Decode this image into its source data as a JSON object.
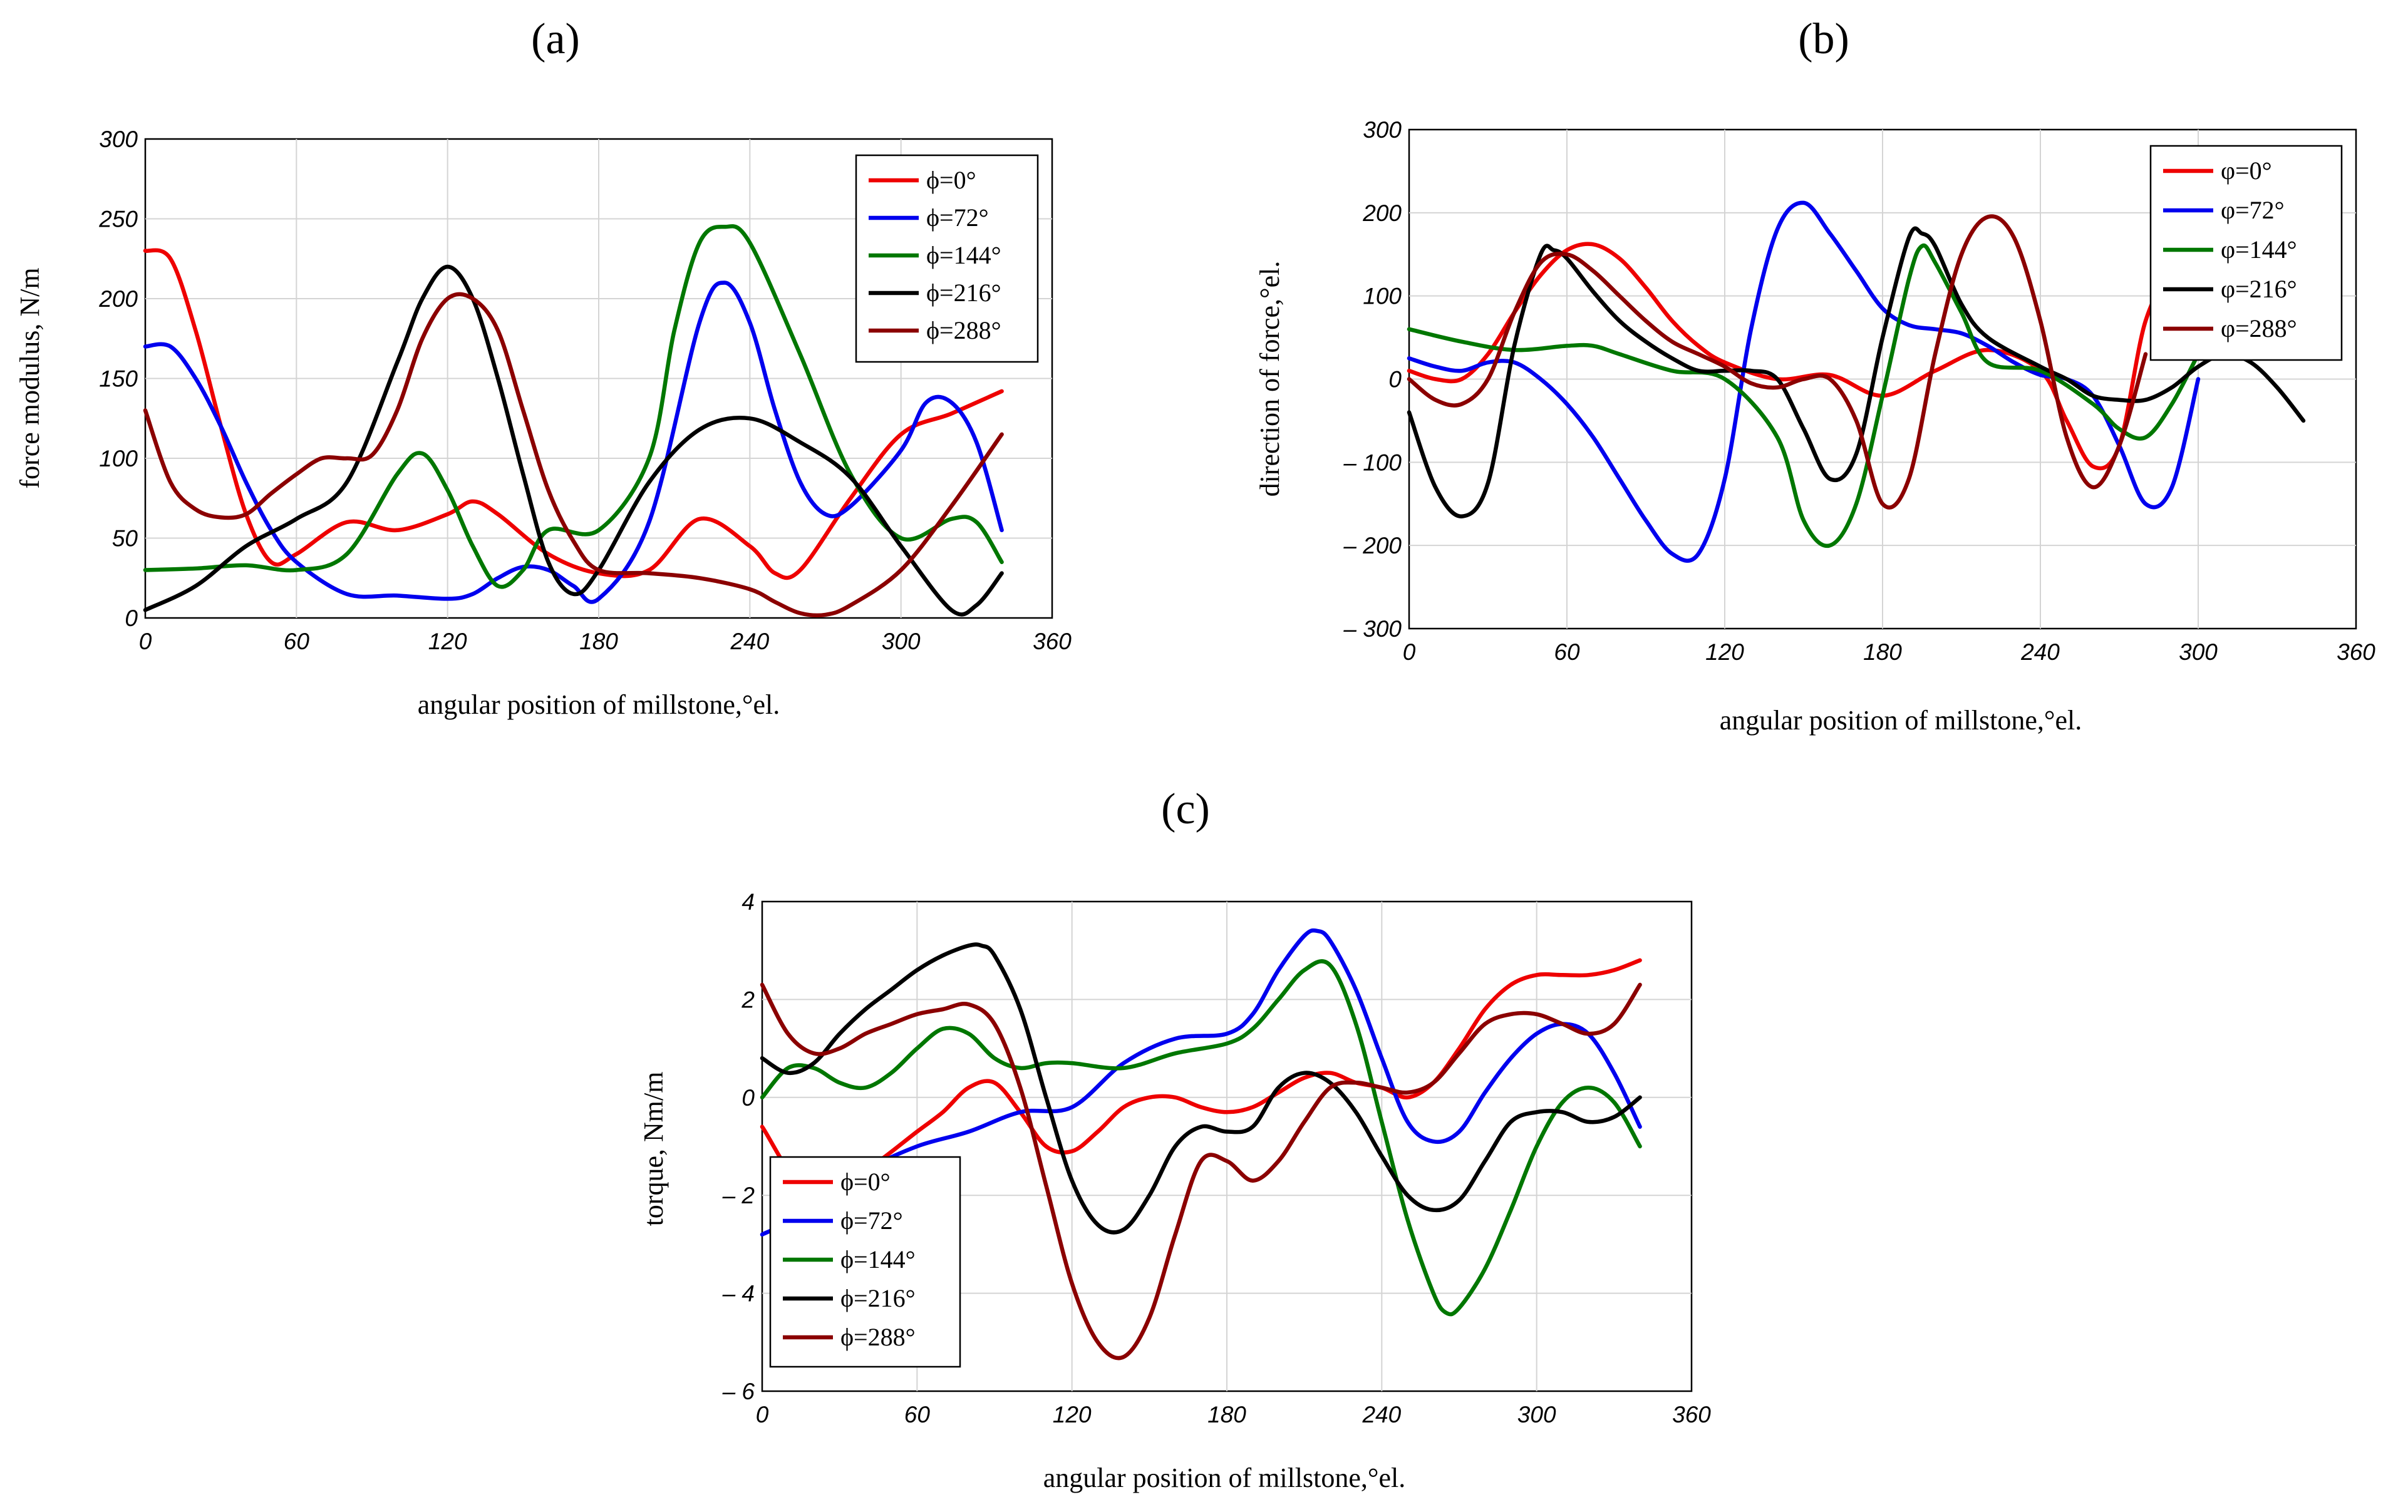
{
  "panels": [
    {
      "id": "a",
      "label": "(a)",
      "xlabel": "angular position of millstone,°el.",
      "ylabel": "force modulus, N/m",
      "xlim": [
        0,
        360
      ],
      "ylim": [
        0,
        300
      ],
      "xticks": [
        "0",
        "60",
        "120",
        "180",
        "240",
        "300",
        "360"
      ],
      "yticks": [
        "0",
        "50",
        "100",
        "150",
        "200",
        "250",
        "300"
      ],
      "legend": [
        "ϕ=0°",
        "ϕ=72°",
        "ϕ=144°",
        "ϕ=216°",
        "ϕ=288°"
      ]
    },
    {
      "id": "b",
      "label": "(b)",
      "xlabel": "angular position of millstone,°el.",
      "ylabel": "direction of force,°el.",
      "xlim": [
        0,
        360
      ],
      "ylim": [
        -300,
        300
      ],
      "xticks": [
        "0",
        "60",
        "120",
        "180",
        "240",
        "300",
        "360"
      ],
      "yticks": [
        "300",
        "200",
        "100",
        "0",
        "– 100",
        "– 200",
        "– 300"
      ],
      "legend": [
        "φ=0°",
        "φ=72°",
        "φ=144°",
        "φ=216°",
        "φ=288°"
      ]
    },
    {
      "id": "c",
      "label": "(c)",
      "xlabel": "angular position of millstone,°el.",
      "ylabel": "torque, Nm/m",
      "xlim": [
        0,
        360
      ],
      "ylim": [
        -6,
        4
      ],
      "xticks": [
        "0",
        "60",
        "120",
        "180",
        "240",
        "300",
        "360"
      ],
      "yticks": [
        "4",
        "2",
        "0",
        "– 2",
        "– 4",
        "– 6"
      ],
      "legend": [
        "ϕ=0°",
        "ϕ=72°",
        "ϕ=144°",
        "ϕ=216°",
        "ϕ=288°"
      ]
    }
  ],
  "colors": {
    "phi0": "#ee0000",
    "phi72": "#0000ee",
    "phi144": "#007700",
    "phi216": "#000000",
    "phi288": "#8b0000"
  },
  "chart_data": [
    {
      "type": "line",
      "panel": "a",
      "xlabel": "angular position of millstone,°el.",
      "ylabel": "force modulus, N/m",
      "xlim": [
        0,
        360
      ],
      "ylim": [
        0,
        300
      ],
      "grid": true,
      "legend_position": "top-right",
      "series": [
        {
          "name": "ϕ=0°",
          "color": "#ee0000",
          "x": [
            0,
            10,
            20,
            30,
            40,
            50,
            60,
            80,
            100,
            120,
            130,
            140,
            160,
            180,
            200,
            220,
            240,
            250,
            260,
            280,
            300,
            320,
            340
          ],
          "y": [
            230,
            225,
            180,
            120,
            65,
            35,
            40,
            60,
            55,
            65,
            73,
            65,
            40,
            28,
            30,
            62,
            45,
            28,
            30,
            75,
            115,
            128,
            142
          ]
        },
        {
          "name": "ϕ=72°",
          "color": "#0000ee",
          "x": [
            0,
            10,
            20,
            30,
            40,
            50,
            60,
            80,
            100,
            120,
            130,
            140,
            150,
            160,
            170,
            180,
            200,
            220,
            230,
            240,
            250,
            260,
            270,
            280,
            300,
            310,
            320,
            330,
            340
          ],
          "y": [
            170,
            170,
            150,
            120,
            85,
            55,
            35,
            15,
            14,
            12,
            15,
            25,
            32,
            30,
            20,
            12,
            60,
            185,
            210,
            185,
            130,
            85,
            65,
            70,
            105,
            135,
            135,
            110,
            55
          ]
        },
        {
          "name": "ϕ=144°",
          "color": "#007700",
          "x": [
            0,
            20,
            40,
            60,
            80,
            100,
            110,
            120,
            130,
            140,
            150,
            160,
            180,
            200,
            210,
            220,
            230,
            240,
            260,
            280,
            300,
            320,
            330,
            340
          ],
          "y": [
            30,
            31,
            33,
            30,
            40,
            90,
            103,
            80,
            45,
            20,
            30,
            55,
            55,
            100,
            180,
            235,
            245,
            235,
            165,
            90,
            50,
            62,
            60,
            35
          ]
        },
        {
          "name": "ϕ=216°",
          "color": "#000000",
          "x": [
            0,
            20,
            40,
            60,
            80,
            100,
            110,
            120,
            130,
            140,
            150,
            160,
            170,
            180,
            200,
            220,
            240,
            260,
            280,
            300,
            320,
            330,
            340
          ],
          "y": [
            5,
            20,
            45,
            62,
            85,
            160,
            200,
            220,
            200,
            150,
            90,
            35,
            15,
            30,
            85,
            118,
            125,
            110,
            88,
            45,
            5,
            8,
            28
          ]
        },
        {
          "name": "ϕ=288°",
          "color": "#8b0000",
          "x": [
            0,
            10,
            20,
            30,
            40,
            50,
            60,
            70,
            80,
            90,
            100,
            110,
            120,
            130,
            140,
            150,
            160,
            170,
            180,
            200,
            220,
            240,
            250,
            260,
            270,
            280,
            300,
            320,
            340
          ],
          "y": [
            130,
            85,
            68,
            63,
            65,
            78,
            90,
            100,
            100,
            102,
            130,
            175,
            200,
            200,
            180,
            130,
            80,
            48,
            30,
            28,
            25,
            18,
            10,
            3,
            2,
            8,
            30,
            70,
            115
          ]
        }
      ]
    },
    {
      "type": "line",
      "panel": "b",
      "xlabel": "angular position of millstone,°el.",
      "ylabel": "direction of force,°el.",
      "xlim": [
        0,
        360
      ],
      "ylim": [
        -300,
        300
      ],
      "grid": true,
      "legend_position": "top-right",
      "series": [
        {
          "name": "φ=0°",
          "color": "#ee0000",
          "x": [
            0,
            10,
            20,
            30,
            40,
            50,
            60,
            70,
            80,
            90,
            100,
            110,
            120,
            140,
            160,
            180,
            200,
            220,
            240,
            250,
            260,
            270,
            280,
            290,
            300,
            310,
            320
          ],
          "y": [
            10,
            0,
            0,
            30,
            80,
            125,
            155,
            162,
            145,
            110,
            70,
            40,
            20,
            0,
            5,
            -20,
            10,
            35,
            10,
            -50,
            -105,
            -80,
            70,
            115,
            60,
            30,
            50
          ]
        },
        {
          "name": "φ=72°",
          "color": "#0000ee",
          "x": [
            0,
            10,
            20,
            30,
            40,
            50,
            60,
            70,
            80,
            90,
            100,
            110,
            120,
            130,
            140,
            150,
            160,
            170,
            180,
            190,
            200,
            210,
            220,
            230,
            240,
            250,
            260,
            270,
            280,
            290,
            300
          ],
          "y": [
            25,
            15,
            10,
            20,
            20,
            0,
            -30,
            -70,
            -120,
            -170,
            -210,
            -210,
            -120,
            60,
            180,
            212,
            175,
            130,
            85,
            65,
            60,
            55,
            40,
            20,
            5,
            0,
            -20,
            -80,
            -150,
            -130,
            0
          ]
        },
        {
          "name": "φ=144°",
          "color": "#007700",
          "x": [
            0,
            20,
            40,
            60,
            70,
            80,
            100,
            120,
            140,
            150,
            160,
            170,
            180,
            190,
            195,
            200,
            210,
            220,
            240,
            260,
            270,
            280,
            290,
            300
          ],
          "y": [
            60,
            45,
            35,
            40,
            40,
            30,
            10,
            0,
            -70,
            -170,
            -200,
            -150,
            -20,
            120,
            160,
            140,
            80,
            20,
            10,
            -30,
            -60,
            -70,
            -30,
            30
          ]
        },
        {
          "name": "φ=216°",
          "color": "#000000",
          "x": [
            0,
            10,
            20,
            30,
            40,
            50,
            55,
            60,
            70,
            80,
            90,
            100,
            110,
            120,
            130,
            140,
            150,
            160,
            170,
            180,
            190,
            195,
            200,
            210,
            220,
            240,
            250,
            260,
            270,
            280,
            290,
            300,
            310,
            320,
            330,
            340
          ],
          "y": [
            -40,
            -130,
            -165,
            -125,
            40,
            150,
            155,
            145,
            105,
            70,
            45,
            25,
            10,
            10,
            10,
            0,
            -60,
            -120,
            -90,
            50,
            170,
            175,
            160,
            90,
            50,
            15,
            0,
            -20,
            -25,
            -25,
            -10,
            15,
            30,
            20,
            -10,
            -50
          ]
        },
        {
          "name": "φ=288°",
          "color": "#8b0000",
          "x": [
            0,
            10,
            20,
            30,
            40,
            50,
            60,
            70,
            80,
            90,
            100,
            110,
            120,
            130,
            140,
            150,
            160,
            170,
            180,
            190,
            200,
            210,
            220,
            230,
            240,
            250,
            260,
            270,
            280
          ],
          "y": [
            0,
            -25,
            -30,
            0,
            80,
            140,
            150,
            130,
            100,
            70,
            45,
            30,
            15,
            -5,
            -10,
            0,
            0,
            -50,
            -150,
            -120,
            30,
            150,
            195,
            170,
            70,
            -70,
            -130,
            -80,
            30
          ]
        }
      ]
    },
    {
      "type": "line",
      "panel": "c",
      "xlabel": "angular position of millstone,°el.",
      "ylabel": "torque, Nm/m",
      "xlim": [
        0,
        360
      ],
      "ylim": [
        -6,
        4
      ],
      "grid": true,
      "legend_position": "bottom-left",
      "series": [
        {
          "name": "ϕ=0°",
          "color": "#ee0000",
          "x": [
            0,
            20,
            40,
            60,
            70,
            80,
            90,
            100,
            110,
            120,
            130,
            140,
            150,
            160,
            170,
            180,
            190,
            200,
            210,
            220,
            230,
            240,
            250,
            260,
            270,
            280,
            290,
            300,
            310,
            320,
            330,
            340
          ],
          "y": [
            -0.6,
            -2.1,
            -1.5,
            -0.7,
            -0.3,
            0.2,
            0.3,
            -0.3,
            -1.0,
            -1.1,
            -0.7,
            -0.2,
            0.0,
            0.0,
            -0.2,
            -0.3,
            -0.2,
            0.1,
            0.4,
            0.5,
            0.3,
            0.2,
            0.0,
            0.3,
            1.0,
            1.8,
            2.3,
            2.5,
            2.5,
            2.5,
            2.6,
            2.8
          ]
        },
        {
          "name": "ϕ=72°",
          "color": "#0000ee",
          "x": [
            0,
            20,
            40,
            60,
            80,
            100,
            120,
            140,
            160,
            180,
            190,
            200,
            210,
            215,
            220,
            230,
            240,
            250,
            260,
            270,
            280,
            290,
            300,
            310,
            320,
            330,
            340
          ],
          "y": [
            -2.8,
            -2.3,
            -1.5,
            -1.0,
            -0.7,
            -0.3,
            -0.2,
            0.7,
            1.2,
            1.3,
            1.7,
            2.6,
            3.3,
            3.4,
            3.2,
            2.2,
            0.8,
            -0.5,
            -0.9,
            -0.7,
            0.1,
            0.8,
            1.3,
            1.5,
            1.3,
            0.5,
            -0.6
          ]
        },
        {
          "name": "ϕ=144°",
          "color": "#007700",
          "x": [
            0,
            10,
            20,
            30,
            40,
            50,
            60,
            70,
            80,
            90,
            100,
            110,
            120,
            140,
            160,
            180,
            190,
            200,
            210,
            220,
            230,
            240,
            250,
            260,
            265,
            270,
            280,
            290,
            300,
            310,
            320,
            330,
            340
          ],
          "y": [
            0.0,
            0.6,
            0.6,
            0.3,
            0.2,
            0.5,
            1.0,
            1.4,
            1.3,
            0.8,
            0.6,
            0.7,
            0.7,
            0.6,
            0.9,
            1.1,
            1.4,
            2.0,
            2.6,
            2.7,
            1.5,
            -0.5,
            -2.5,
            -4.0,
            -4.4,
            -4.3,
            -3.5,
            -2.3,
            -1.0,
            -0.1,
            0.2,
            -0.1,
            -1.0
          ]
        },
        {
          "name": "ϕ=216°",
          "color": "#000000",
          "x": [
            0,
            10,
            20,
            30,
            40,
            50,
            60,
            70,
            80,
            85,
            90,
            100,
            110,
            120,
            130,
            140,
            150,
            160,
            170,
            180,
            190,
            200,
            210,
            220,
            230,
            240,
            250,
            260,
            270,
            280,
            290,
            300,
            310,
            320,
            330,
            340
          ],
          "y": [
            0.8,
            0.5,
            0.7,
            1.3,
            1.8,
            2.2,
            2.6,
            2.9,
            3.1,
            3.1,
            2.9,
            1.8,
            0.0,
            -1.7,
            -2.6,
            -2.7,
            -2.0,
            -1.0,
            -0.6,
            -0.7,
            -0.6,
            0.2,
            0.5,
            0.3,
            -0.3,
            -1.2,
            -2.0,
            -2.3,
            -2.1,
            -1.3,
            -0.5,
            -0.3,
            -0.3,
            -0.5,
            -0.4,
            0.0
          ]
        },
        {
          "name": "ϕ=288°",
          "color": "#8b0000",
          "x": [
            0,
            10,
            20,
            30,
            40,
            50,
            60,
            70,
            80,
            90,
            100,
            110,
            120,
            130,
            140,
            150,
            160,
            170,
            180,
            190,
            200,
            210,
            220,
            230,
            240,
            250,
            260,
            270,
            280,
            290,
            300,
            310,
            320,
            330,
            340
          ],
          "y": [
            2.3,
            1.3,
            0.9,
            1.0,
            1.3,
            1.5,
            1.7,
            1.8,
            1.9,
            1.5,
            0.2,
            -1.8,
            -3.8,
            -5.0,
            -5.3,
            -4.5,
            -2.8,
            -1.3,
            -1.3,
            -1.7,
            -1.3,
            -0.5,
            0.2,
            0.3,
            0.2,
            0.1,
            0.3,
            0.9,
            1.5,
            1.7,
            1.7,
            1.5,
            1.3,
            1.5,
            2.3
          ]
        }
      ]
    }
  ]
}
